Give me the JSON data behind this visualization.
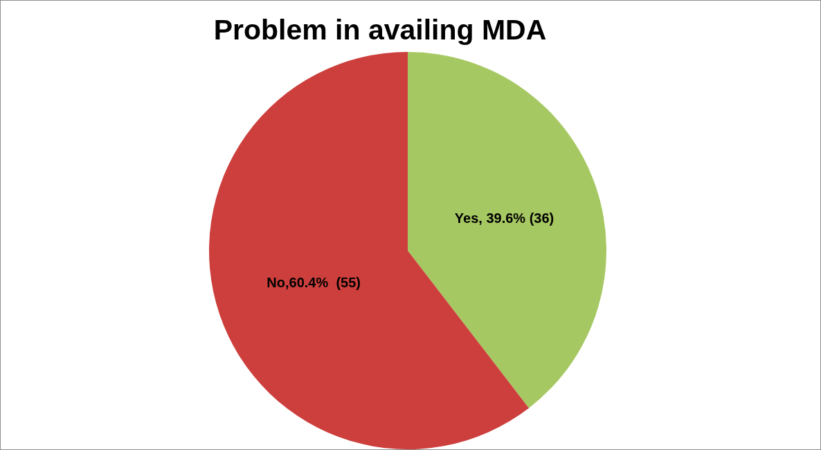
{
  "chart_data": {
    "type": "pie",
    "title": "Problem in availing MDA",
    "categories": [
      "Yes, 39.6% (36)",
      "No,60.4%  (55)"
    ],
    "values": [
      36,
      55
    ],
    "colors": [
      "#a6c862",
      "#cc3f3c"
    ]
  }
}
